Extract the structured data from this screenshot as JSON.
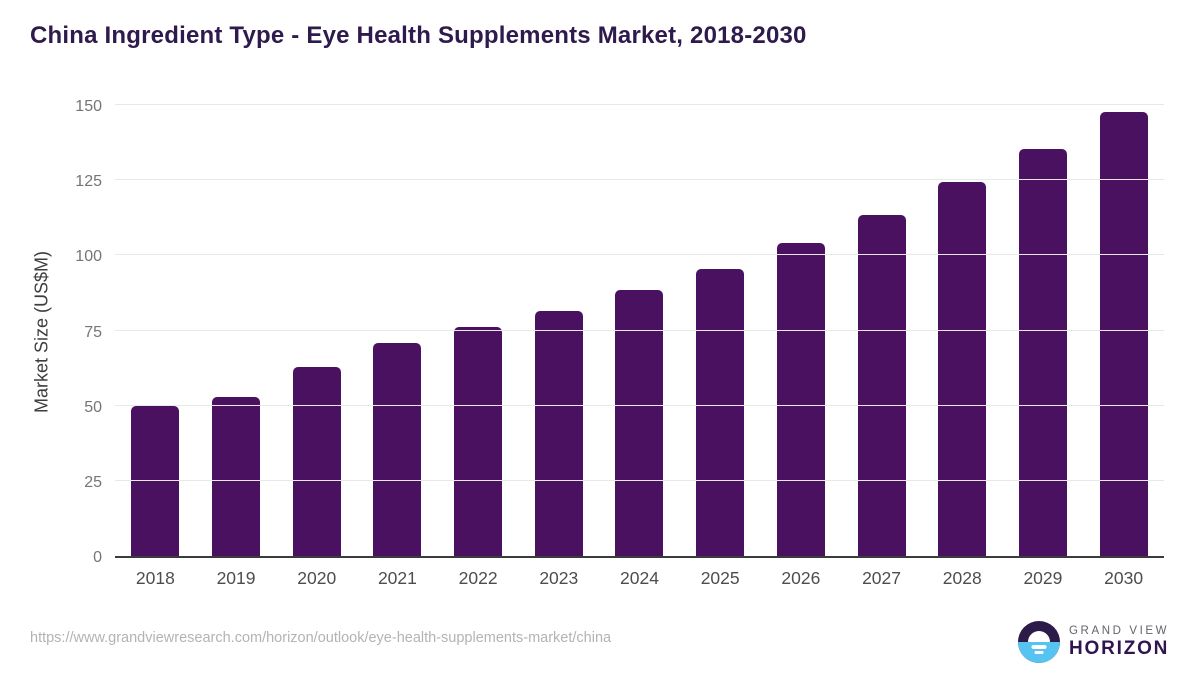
{
  "chart_data": {
    "type": "bar",
    "title": "China Ingredient Type - Eye Health Supplements Market, 2018-2030",
    "categories": [
      "2018",
      "2019",
      "2020",
      "2021",
      "2022",
      "2023",
      "2024",
      "2025",
      "2026",
      "2027",
      "2028",
      "2029",
      "2030"
    ],
    "values": [
      50,
      53,
      63,
      71,
      76.5,
      82,
      89,
      96,
      104.5,
      114,
      125,
      136,
      148.5
    ],
    "xlabel": "",
    "ylabel": "Market Size (US$M)",
    "ylim": [
      0,
      150
    ],
    "yticks": [
      0,
      25,
      50,
      75,
      100,
      125,
      150
    ],
    "grid": true,
    "legend": false,
    "bar_color": "#4a1161",
    "gridline_color": "#e8e8e8",
    "axis_line_color": "#3b3b3b",
    "title_color": "#2f1a4d"
  },
  "footer": {
    "source_url": "https://www.grandviewresearch.com/horizon/outlook/eye-health-supplements-market/china",
    "logo": {
      "line1": "GRAND VIEW",
      "line2": "HORIZON",
      "icon_top_color": "#2c1a49",
      "icon_bottom_color": "#56c3f0"
    }
  }
}
